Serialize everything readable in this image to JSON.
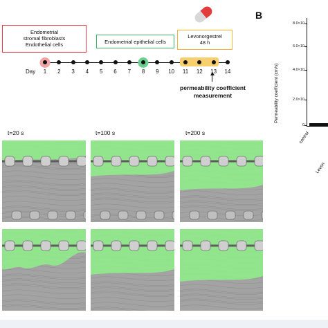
{
  "panel_b_label": "B",
  "boxes": {
    "cells_left": {
      "lines": [
        "Endometrial",
        "stromal fibroblasts",
        "Endothelial cells"
      ],
      "color": "#e0393e"
    },
    "epithelial": {
      "lines": [
        "Endometrial epithelial cells"
      ],
      "color": "#3fb36c"
    },
    "treatment": {
      "lines": [
        "Levonorgestrel",
        "48 h"
      ],
      "color": "#f3b62c"
    }
  },
  "timeline": {
    "day_label": "Day",
    "days": [
      "1",
      "2",
      "3",
      "4",
      "5",
      "6",
      "7",
      "8",
      "9",
      "10",
      "11",
      "12",
      "13",
      "14"
    ],
    "highlight_day1_color": "#f2a3a4",
    "highlight_day8_color": "#6ad08f",
    "highlight_range_color": "#f7cf6e"
  },
  "measurement_note": [
    "permeability coefficient",
    "measurement"
  ],
  "time_labels": [
    "t=20 s",
    "t=100 s",
    "t=200 s"
  ],
  "chart_data": {
    "type": "bar",
    "ylabel": "Permeability coefficient (cm/s)",
    "ytick_labels": [
      "8.0×10",
      "6.0×10",
      "4.0×10",
      "2.0×10",
      "0"
    ],
    "categories": [
      "control",
      "Levon"
    ],
    "values": [
      0.2,
      null
    ]
  },
  "colors": {
    "overlay_green": "#8ff08a",
    "pill_red": "#e23b3b",
    "pill_grey": "#d8d8d8"
  }
}
